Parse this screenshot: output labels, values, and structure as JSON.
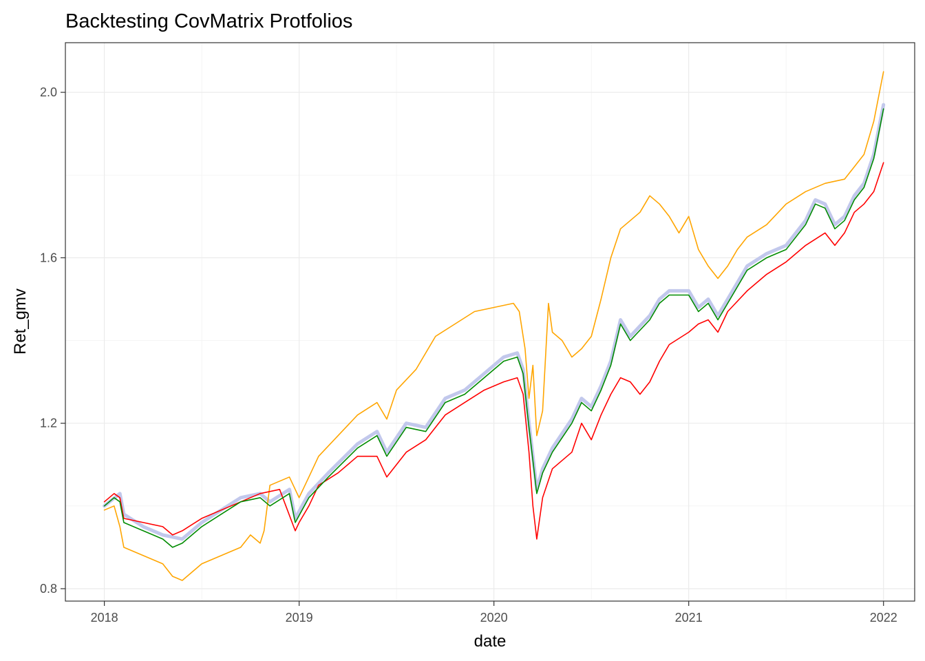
{
  "chart_data": {
    "type": "line",
    "title": "Backtesting CovMatrix Protfolios",
    "xlabel": "date",
    "ylabel": "Ret_gmv",
    "xlim": [
      2017.8,
      2022.16
    ],
    "ylim": [
      0.77,
      2.12
    ],
    "x_ticks": [
      2018,
      2019,
      2020,
      2021,
      2022
    ],
    "x_tick_labels": [
      "2018",
      "2019",
      "2020",
      "2021",
      "2022"
    ],
    "y_ticks": [
      0.8,
      1.2,
      1.6,
      2.0
    ],
    "y_tick_labels": [
      "0.8",
      "1.2",
      "1.6",
      "2.0"
    ],
    "grid": true,
    "legend": "none",
    "series": [
      {
        "color": "#c2c8ec",
        "width": 5,
        "points": [
          [
            2018.0,
            1.0
          ],
          [
            2018.08,
            1.03
          ],
          [
            2018.1,
            0.98
          ],
          [
            2018.2,
            0.95
          ],
          [
            2018.3,
            0.93
          ],
          [
            2018.4,
            0.92
          ],
          [
            2018.5,
            0.96
          ],
          [
            2018.6,
            0.99
          ],
          [
            2018.7,
            1.02
          ],
          [
            2018.8,
            1.03
          ],
          [
            2018.85,
            1.01
          ],
          [
            2018.95,
            1.04
          ],
          [
            2018.98,
            0.97
          ],
          [
            2019.05,
            1.03
          ],
          [
            2019.15,
            1.08
          ],
          [
            2019.3,
            1.15
          ],
          [
            2019.4,
            1.18
          ],
          [
            2019.45,
            1.13
          ],
          [
            2019.55,
            1.2
          ],
          [
            2019.65,
            1.19
          ],
          [
            2019.75,
            1.26
          ],
          [
            2019.85,
            1.28
          ],
          [
            2019.95,
            1.32
          ],
          [
            2020.05,
            1.36
          ],
          [
            2020.12,
            1.37
          ],
          [
            2020.15,
            1.33
          ],
          [
            2020.18,
            1.2
          ],
          [
            2020.2,
            1.12
          ],
          [
            2020.22,
            1.04
          ],
          [
            2020.25,
            1.09
          ],
          [
            2020.3,
            1.14
          ],
          [
            2020.4,
            1.21
          ],
          [
            2020.45,
            1.26
          ],
          [
            2020.5,
            1.24
          ],
          [
            2020.55,
            1.29
          ],
          [
            2020.6,
            1.35
          ],
          [
            2020.65,
            1.45
          ],
          [
            2020.7,
            1.41
          ],
          [
            2020.8,
            1.46
          ],
          [
            2020.85,
            1.5
          ],
          [
            2020.9,
            1.52
          ],
          [
            2021.0,
            1.52
          ],
          [
            2021.05,
            1.48
          ],
          [
            2021.1,
            1.5
          ],
          [
            2021.15,
            1.46
          ],
          [
            2021.2,
            1.5
          ],
          [
            2021.3,
            1.58
          ],
          [
            2021.4,
            1.61
          ],
          [
            2021.5,
            1.63
          ],
          [
            2021.6,
            1.69
          ],
          [
            2021.65,
            1.74
          ],
          [
            2021.7,
            1.73
          ],
          [
            2021.75,
            1.68
          ],
          [
            2021.8,
            1.7
          ],
          [
            2021.85,
            1.75
          ],
          [
            2021.9,
            1.78
          ],
          [
            2021.95,
            1.85
          ],
          [
            2022.0,
            1.97
          ]
        ]
      },
      {
        "color": "#ffa500",
        "width": 1.6,
        "points": [
          [
            2018.0,
            0.99
          ],
          [
            2018.05,
            1.0
          ],
          [
            2018.08,
            0.95
          ],
          [
            2018.1,
            0.9
          ],
          [
            2018.2,
            0.88
          ],
          [
            2018.3,
            0.86
          ],
          [
            2018.35,
            0.83
          ],
          [
            2018.4,
            0.82
          ],
          [
            2018.45,
            0.84
          ],
          [
            2018.5,
            0.86
          ],
          [
            2018.6,
            0.88
          ],
          [
            2018.7,
            0.9
          ],
          [
            2018.75,
            0.93
          ],
          [
            2018.8,
            0.91
          ],
          [
            2018.82,
            0.94
          ],
          [
            2018.85,
            1.05
          ],
          [
            2018.95,
            1.07
          ],
          [
            2019.0,
            1.02
          ],
          [
            2019.05,
            1.07
          ],
          [
            2019.1,
            1.12
          ],
          [
            2019.2,
            1.17
          ],
          [
            2019.3,
            1.22
          ],
          [
            2019.4,
            1.25
          ],
          [
            2019.45,
            1.21
          ],
          [
            2019.5,
            1.28
          ],
          [
            2019.6,
            1.33
          ],
          [
            2019.7,
            1.41
          ],
          [
            2019.8,
            1.44
          ],
          [
            2019.9,
            1.47
          ],
          [
            2020.0,
            1.48
          ],
          [
            2020.1,
            1.49
          ],
          [
            2020.13,
            1.47
          ],
          [
            2020.16,
            1.38
          ],
          [
            2020.18,
            1.26
          ],
          [
            2020.2,
            1.34
          ],
          [
            2020.22,
            1.17
          ],
          [
            2020.25,
            1.23
          ],
          [
            2020.28,
            1.49
          ],
          [
            2020.3,
            1.42
          ],
          [
            2020.35,
            1.4
          ],
          [
            2020.4,
            1.36
          ],
          [
            2020.45,
            1.38
          ],
          [
            2020.5,
            1.41
          ],
          [
            2020.55,
            1.5
          ],
          [
            2020.6,
            1.6
          ],
          [
            2020.65,
            1.67
          ],
          [
            2020.7,
            1.69
          ],
          [
            2020.75,
            1.71
          ],
          [
            2020.8,
            1.75
          ],
          [
            2020.85,
            1.73
          ],
          [
            2020.9,
            1.7
          ],
          [
            2020.95,
            1.66
          ],
          [
            2021.0,
            1.7
          ],
          [
            2021.05,
            1.62
          ],
          [
            2021.1,
            1.58
          ],
          [
            2021.15,
            1.55
          ],
          [
            2021.2,
            1.58
          ],
          [
            2021.25,
            1.62
          ],
          [
            2021.3,
            1.65
          ],
          [
            2021.4,
            1.68
          ],
          [
            2021.5,
            1.73
          ],
          [
            2021.6,
            1.76
          ],
          [
            2021.7,
            1.78
          ],
          [
            2021.8,
            1.79
          ],
          [
            2021.85,
            1.82
          ],
          [
            2021.9,
            1.85
          ],
          [
            2021.95,
            1.93
          ],
          [
            2022.0,
            2.05
          ]
        ]
      },
      {
        "color": "#ff0000",
        "width": 1.6,
        "points": [
          [
            2018.0,
            1.01
          ],
          [
            2018.05,
            1.03
          ],
          [
            2018.08,
            1.02
          ],
          [
            2018.1,
            0.97
          ],
          [
            2018.2,
            0.96
          ],
          [
            2018.3,
            0.95
          ],
          [
            2018.35,
            0.93
          ],
          [
            2018.4,
            0.94
          ],
          [
            2018.5,
            0.97
          ],
          [
            2018.6,
            0.99
          ],
          [
            2018.7,
            1.01
          ],
          [
            2018.8,
            1.03
          ],
          [
            2018.9,
            1.04
          ],
          [
            2018.98,
            0.94
          ],
          [
            2019.0,
            0.96
          ],
          [
            2019.05,
            1.0
          ],
          [
            2019.1,
            1.05
          ],
          [
            2019.2,
            1.08
          ],
          [
            2019.3,
            1.12
          ],
          [
            2019.4,
            1.12
          ],
          [
            2019.45,
            1.07
          ],
          [
            2019.55,
            1.13
          ],
          [
            2019.65,
            1.16
          ],
          [
            2019.75,
            1.22
          ],
          [
            2019.85,
            1.25
          ],
          [
            2019.95,
            1.28
          ],
          [
            2020.05,
            1.3
          ],
          [
            2020.12,
            1.31
          ],
          [
            2020.15,
            1.27
          ],
          [
            2020.18,
            1.13
          ],
          [
            2020.2,
            1.0
          ],
          [
            2020.22,
            0.92
          ],
          [
            2020.25,
            1.02
          ],
          [
            2020.3,
            1.09
          ],
          [
            2020.4,
            1.13
          ],
          [
            2020.45,
            1.2
          ],
          [
            2020.5,
            1.16
          ],
          [
            2020.55,
            1.22
          ],
          [
            2020.6,
            1.27
          ],
          [
            2020.65,
            1.31
          ],
          [
            2020.7,
            1.3
          ],
          [
            2020.75,
            1.27
          ],
          [
            2020.8,
            1.3
          ],
          [
            2020.85,
            1.35
          ],
          [
            2020.9,
            1.39
          ],
          [
            2021.0,
            1.42
          ],
          [
            2021.05,
            1.44
          ],
          [
            2021.1,
            1.45
          ],
          [
            2021.15,
            1.42
          ],
          [
            2021.2,
            1.47
          ],
          [
            2021.3,
            1.52
          ],
          [
            2021.4,
            1.56
          ],
          [
            2021.5,
            1.59
          ],
          [
            2021.6,
            1.63
          ],
          [
            2021.7,
            1.66
          ],
          [
            2021.75,
            1.63
          ],
          [
            2021.8,
            1.66
          ],
          [
            2021.85,
            1.71
          ],
          [
            2021.9,
            1.73
          ],
          [
            2021.95,
            1.76
          ],
          [
            2022.0,
            1.83
          ]
        ]
      },
      {
        "color": "#008b00",
        "width": 1.6,
        "points": [
          [
            2018.0,
            1.0
          ],
          [
            2018.05,
            1.02
          ],
          [
            2018.08,
            1.01
          ],
          [
            2018.1,
            0.96
          ],
          [
            2018.2,
            0.94
          ],
          [
            2018.3,
            0.92
          ],
          [
            2018.35,
            0.9
          ],
          [
            2018.4,
            0.91
          ],
          [
            2018.5,
            0.95
          ],
          [
            2018.6,
            0.98
          ],
          [
            2018.7,
            1.01
          ],
          [
            2018.8,
            1.02
          ],
          [
            2018.85,
            1.0
          ],
          [
            2018.95,
            1.03
          ],
          [
            2018.98,
            0.96
          ],
          [
            2019.05,
            1.02
          ],
          [
            2019.15,
            1.07
          ],
          [
            2019.3,
            1.14
          ],
          [
            2019.4,
            1.17
          ],
          [
            2019.45,
            1.12
          ],
          [
            2019.55,
            1.19
          ],
          [
            2019.65,
            1.18
          ],
          [
            2019.75,
            1.25
          ],
          [
            2019.85,
            1.27
          ],
          [
            2019.95,
            1.31
          ],
          [
            2020.05,
            1.35
          ],
          [
            2020.12,
            1.36
          ],
          [
            2020.15,
            1.32
          ],
          [
            2020.18,
            1.19
          ],
          [
            2020.2,
            1.11
          ],
          [
            2020.22,
            1.03
          ],
          [
            2020.25,
            1.08
          ],
          [
            2020.3,
            1.13
          ],
          [
            2020.4,
            1.2
          ],
          [
            2020.45,
            1.25
          ],
          [
            2020.5,
            1.23
          ],
          [
            2020.55,
            1.28
          ],
          [
            2020.6,
            1.34
          ],
          [
            2020.65,
            1.44
          ],
          [
            2020.7,
            1.4
          ],
          [
            2020.8,
            1.45
          ],
          [
            2020.85,
            1.49
          ],
          [
            2020.9,
            1.51
          ],
          [
            2021.0,
            1.51
          ],
          [
            2021.05,
            1.47
          ],
          [
            2021.1,
            1.49
          ],
          [
            2021.15,
            1.45
          ],
          [
            2021.2,
            1.49
          ],
          [
            2021.3,
            1.57
          ],
          [
            2021.4,
            1.6
          ],
          [
            2021.5,
            1.62
          ],
          [
            2021.6,
            1.68
          ],
          [
            2021.65,
            1.73
          ],
          [
            2021.7,
            1.72
          ],
          [
            2021.75,
            1.67
          ],
          [
            2021.8,
            1.69
          ],
          [
            2021.85,
            1.74
          ],
          [
            2021.9,
            1.77
          ],
          [
            2021.95,
            1.84
          ],
          [
            2022.0,
            1.96
          ]
        ]
      }
    ]
  }
}
